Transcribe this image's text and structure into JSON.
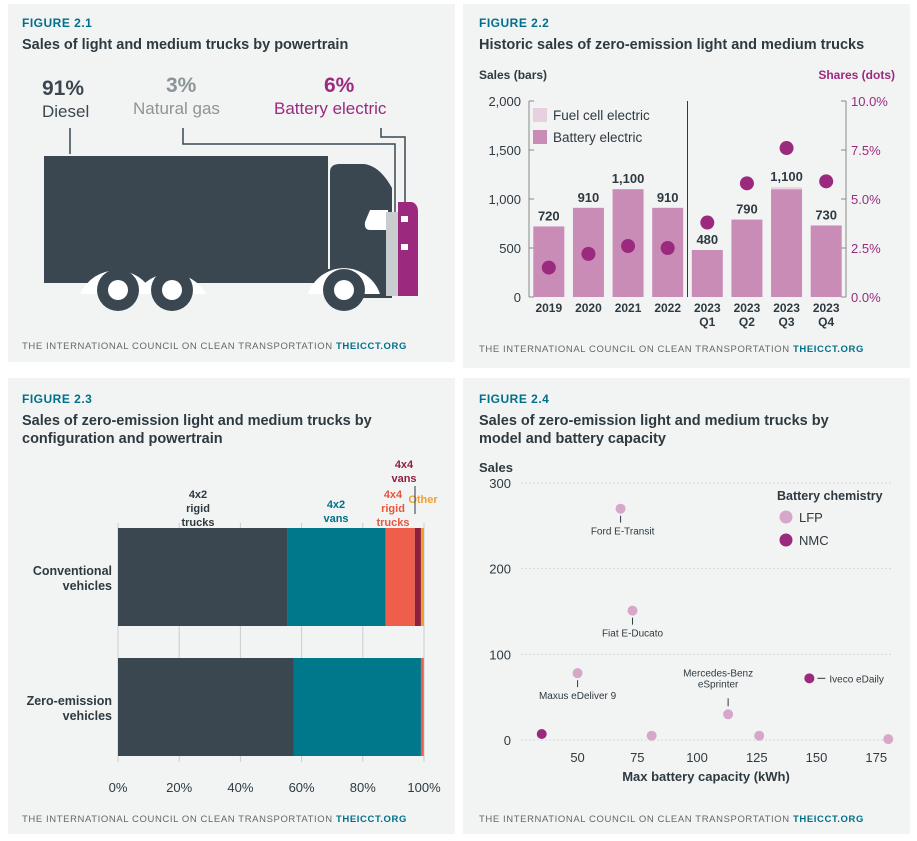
{
  "fig1": {
    "label": "FIGURE 2.1",
    "title": "Sales of light and medium trucks by powertrain",
    "items": [
      {
        "pct": "91%",
        "name": "Diesel",
        "color": "#3b4750"
      },
      {
        "pct": "3%",
        "name": "Natural gas",
        "color": "#8c9497"
      },
      {
        "pct": "6%",
        "name": "Battery electric",
        "color": "#9b2a7f"
      }
    ],
    "footer_org": "THE INTERNATIONAL COUNCIL ON CLEAN TRANSPORTATION",
    "footer_site": "THEICCT.ORG"
  },
  "fig2": {
    "label": "FIGURE 2.2",
    "title": "Historic sales of zero-emission light and medium trucks",
    "footer_org": "THE INTERNATIONAL COUNCIL ON CLEAN TRANSPORTATION",
    "footer_site": "THEICCT.ORG",
    "chart_data": {
      "type": "bar",
      "ylabel": "Sales (bars)",
      "y2label": "Shares (dots)",
      "ylim": [
        0,
        2000
      ],
      "yticks": [
        "0",
        "500",
        "1,000",
        "1,500",
        "2,000"
      ],
      "y2lim": [
        0,
        10
      ],
      "y2ticks": [
        "0.0%",
        "2.5%",
        "5.0%",
        "7.5%",
        "10.0%"
      ],
      "categories": [
        "2019",
        "2020",
        "2021",
        "2022",
        "2023 Q1",
        "2023 Q2",
        "2023 Q3",
        "2023 Q4"
      ],
      "category_lines": [
        [
          "2019"
        ],
        [
          "2020"
        ],
        [
          "2021"
        ],
        [
          "2022"
        ],
        [
          "2023",
          "Q1"
        ],
        [
          "2023",
          "Q2"
        ],
        [
          "2023",
          "Q3"
        ],
        [
          "2023",
          "Q4"
        ]
      ],
      "legend": [
        "Fuel cell electric",
        "Battery electric"
      ],
      "legend_colors": [
        "#e7d1e1",
        "#c98cb6"
      ],
      "bar_values": [
        720,
        910,
        1100,
        910,
        480,
        790,
        1100,
        730
      ],
      "bar_labels": [
        "720",
        "910",
        "1,100",
        "910",
        "480",
        "790",
        "1,100",
        "730"
      ],
      "fuel_cell_values": [
        0,
        0,
        0,
        0,
        0,
        0,
        20,
        0
      ],
      "share_values": [
        1.5,
        2.2,
        2.6,
        2.5,
        3.8,
        5.8,
        7.6,
        5.9
      ],
      "dot_color": "#9b2a7f"
    }
  },
  "fig3": {
    "label": "FIGURE 2.3",
    "title_lines": [
      "Sales of zero-emission light and medium trucks by",
      "configuration and powertrain"
    ],
    "footer_org": "THE INTERNATIONAL COUNCIL ON CLEAN TRANSPORTATION",
    "footer_site": "THEICCT.ORG",
    "chart_data": {
      "type": "bar",
      "orientation": "horizontal-stacked",
      "categories": [
        "Conventional vehicles",
        "Zero-emission vehicles"
      ],
      "category_lines": [
        [
          "Conventional",
          "vehicles"
        ],
        [
          "Zero-emission",
          "vehicles"
        ]
      ],
      "xlim": [
        0,
        100
      ],
      "xticks": [
        "0%",
        "20%",
        "40%",
        "60%",
        "80%",
        "100%"
      ],
      "series": [
        {
          "name": "4x2 rigid trucks",
          "label_lines": [
            "4x2",
            "rigid",
            "trucks"
          ],
          "color": "#3b4750",
          "label_color": "#2e3a40",
          "values": [
            55.5,
            57.5
          ]
        },
        {
          "name": "4x2 vans",
          "label_lines": [
            "4x2",
            "vans"
          ],
          "color": "#00788c",
          "label_color": "#00708a",
          "values": [
            32.0,
            41.5
          ]
        },
        {
          "name": "4x4 rigid trucks",
          "label_lines": [
            "4x4",
            "rigid",
            "trucks"
          ],
          "color": "#ef5e4a",
          "label_color": "#e8553f",
          "values": [
            9.5,
            0.7
          ]
        },
        {
          "name": "4x4 vans",
          "label_lines": [
            "4x4",
            "vans"
          ],
          "color": "#8f1f3f",
          "label_color": "#8f1f3f",
          "values": [
            2.0,
            0.1
          ]
        },
        {
          "name": "Other",
          "label_lines": [
            "Other"
          ],
          "color": "#f0a030",
          "label_color": "#f0a030",
          "values": [
            1.0,
            0.2
          ]
        }
      ]
    }
  },
  "fig4": {
    "label": "FIGURE 2.4",
    "title_lines": [
      "Sales of zero-emission light and medium trucks by",
      "model and battery capacity"
    ],
    "footer_org": "THE INTERNATIONAL COUNCIL ON CLEAN TRANSPORTATION",
    "footer_site": "THEICCT.ORG",
    "chart_data": {
      "type": "scatter",
      "ylabel": "Sales",
      "xlabel": "Max battery capacity (kWh)",
      "xlim": [
        28,
        182
      ],
      "ylim": [
        0,
        300
      ],
      "xticks": [
        50,
        75,
        100,
        125,
        150,
        175
      ],
      "yticks": [
        0,
        100,
        200,
        300
      ],
      "legend_title": "Battery chemistry",
      "legend": [
        "LFP",
        "NMC"
      ],
      "colors": {
        "LFP": "#d7a7ca",
        "NMC": "#9b2a7f"
      },
      "points": [
        {
          "x": 68,
          "y": 270,
          "chem": "LFP",
          "label_lines": [
            "Ford E-Transit"
          ]
        },
        {
          "x": 73,
          "y": 151,
          "chem": "LFP",
          "label_lines": [
            "Fiat E-Ducato"
          ]
        },
        {
          "x": 50,
          "y": 78,
          "chem": "LFP",
          "label_lines": [
            "Maxus eDeliver 9"
          ]
        },
        {
          "x": 113,
          "y": 30,
          "chem": "LFP",
          "label_lines": [
            "Mercedes-Benz",
            "eSprinter"
          ]
        },
        {
          "x": 147,
          "y": 72,
          "chem": "NMC",
          "label_lines": [
            "Iveco eDaily"
          ]
        },
        {
          "x": 35,
          "y": 7,
          "chem": "NMC",
          "label_lines": []
        },
        {
          "x": 81,
          "y": 5,
          "chem": "LFP",
          "label_lines": []
        },
        {
          "x": 126,
          "y": 5,
          "chem": "LFP",
          "label_lines": []
        },
        {
          "x": 180,
          "y": 1,
          "chem": "LFP",
          "label_lines": []
        }
      ]
    }
  }
}
